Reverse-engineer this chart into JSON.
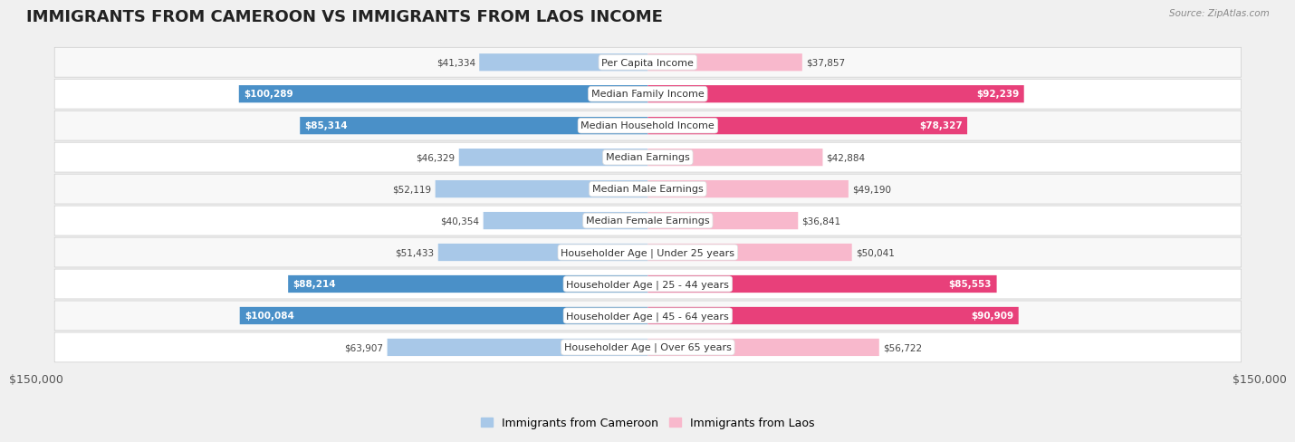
{
  "title": "IMMIGRANTS FROM CAMEROON VS IMMIGRANTS FROM LAOS INCOME",
  "source": "Source: ZipAtlas.com",
  "categories": [
    "Per Capita Income",
    "Median Family Income",
    "Median Household Income",
    "Median Earnings",
    "Median Male Earnings",
    "Median Female Earnings",
    "Householder Age | Under 25 years",
    "Householder Age | 25 - 44 years",
    "Householder Age | 45 - 64 years",
    "Householder Age | Over 65 years"
  ],
  "cameroon_values": [
    41334,
    100289,
    85314,
    46329,
    52119,
    40354,
    51433,
    88214,
    100084,
    63907
  ],
  "laos_values": [
    37857,
    92239,
    78327,
    42884,
    49190,
    36841,
    50041,
    85553,
    90909,
    56722
  ],
  "cameroon_color_light": "#a8c8e8",
  "cameroon_color_dark": "#4a90c8",
  "laos_color_light": "#f8b8cc",
  "laos_color_dark": "#e8407a",
  "max_value": 150000,
  "legend_cameroon": "Immigrants from Cameroon",
  "legend_laos": "Immigrants from Laos",
  "xlabel_left": "$150,000",
  "xlabel_right": "$150,000",
  "bg_color": "#f0f0f0",
  "row_colors": [
    "#f8f8f8",
    "#ffffff"
  ],
  "title_fontsize": 13,
  "label_fontsize": 8.0,
  "value_fontsize": 7.5,
  "threshold_dark": 65000
}
